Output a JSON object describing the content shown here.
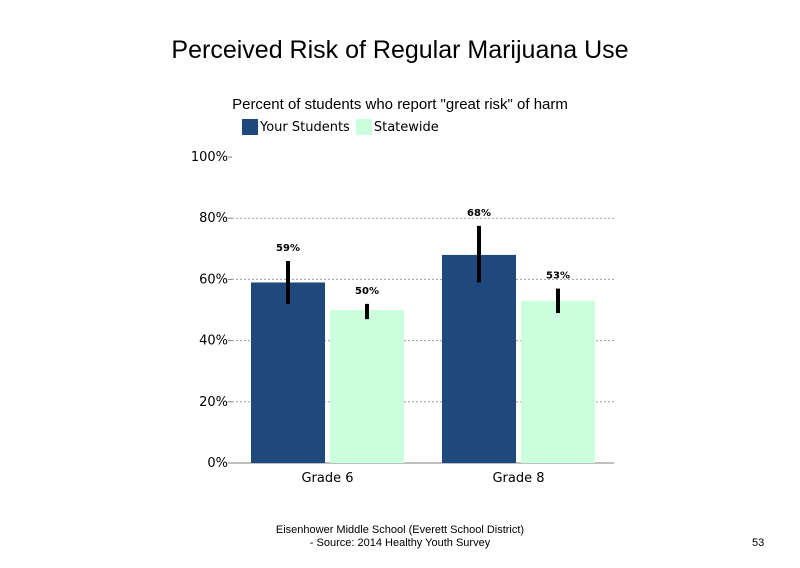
{
  "slide": {
    "footer_line1": "Eisenhower Middle School (Everett School District)",
    "footer_line2": "- Source: 2014 Healthy Youth Survey",
    "page_number": "53"
  },
  "chart_data": {
    "type": "bar",
    "title": "Perceived Risk of Regular Marijuana Use",
    "subtitle": "Percent of students who report \"great risk\" of harm",
    "xlabel": "",
    "ylabel": "",
    "categories": [
      "Grade 6",
      "Grade 8"
    ],
    "series": [
      {
        "name": "Your Students",
        "color": "#1f497d",
        "values": [
          59,
          68
        ],
        "labels": [
          "59%",
          "68%"
        ],
        "error_low": [
          52,
          59
        ],
        "error_high": [
          66,
          77.5
        ]
      },
      {
        "name": "Statewide",
        "color": "#ccffdd",
        "values": [
          50,
          53
        ],
        "labels": [
          "50%",
          "53%"
        ],
        "error_low": [
          47,
          49
        ],
        "error_high": [
          52,
          57
        ]
      }
    ],
    "ylim": [
      0,
      100
    ],
    "yticks": [
      0,
      20,
      40,
      60,
      80,
      100
    ],
    "ytick_labels": [
      "0%",
      "20%",
      "40%",
      "60%",
      "80%",
      "100%"
    ],
    "grid": true,
    "legend_position": "top"
  }
}
